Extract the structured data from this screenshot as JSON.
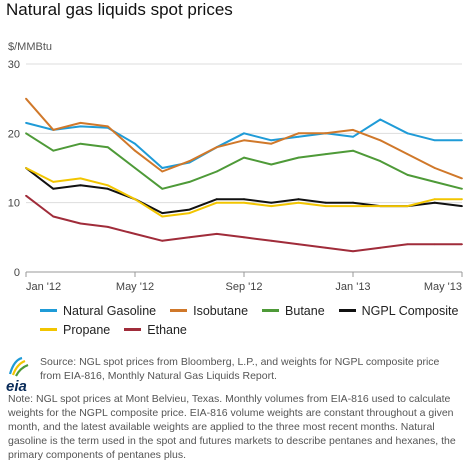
{
  "title": "Natural gas liquids spot prices",
  "unit": "$/MMBtu",
  "source": "Source: NGL spot prices from Bloomberg, L.P., and weights for NGPL composite price from EIA-816, Monthly Natural Gas Liquids Report.",
  "note": "Note: NGL spot prices at Mont Belvieu, Texas. Monthly volumes from EIA-816 used to calculate weights for the NGPL composite price. EIA-816 volume weights are constant throughout a given month, and the latest available weights are applied to the three most recent months. Natural gasoline is the term used in the spot and futures markets to describe pentanes and hexanes, the primary components of pentanes plus.",
  "logo_text": "eia",
  "chart_data": {
    "type": "line",
    "title": "Natural gas liquids spot prices",
    "ylabel": "$/MMBtu",
    "ylim": [
      0,
      30
    ],
    "yticks": [
      "0",
      "10",
      "20",
      "30"
    ],
    "xticks": [
      "Jan '12",
      "May '12",
      "Sep '12",
      "Jan '13",
      "May '13"
    ],
    "x": [
      "Jan '12",
      "Feb '12",
      "Mar '12",
      "Apr '12",
      "May '12",
      "Jun '12",
      "Jul '12",
      "Aug '12",
      "Sep '12",
      "Oct '12",
      "Nov '12",
      "Dec '12",
      "Jan '13",
      "Feb '13",
      "Mar '13",
      "Apr '13",
      "May '13"
    ],
    "grid": true,
    "legend_position": "bottom",
    "series": [
      {
        "name": "Natural Gasoline",
        "color": "#1f9bd7",
        "values": [
          21.5,
          20.5,
          21,
          20.8,
          18.5,
          15,
          15.8,
          18,
          20,
          19,
          19.5,
          20,
          19.5,
          22,
          20,
          19,
          19
        ]
      },
      {
        "name": "Isobutane",
        "color": "#d0782a",
        "values": [
          25,
          20.5,
          21.5,
          21,
          17.5,
          14.5,
          16,
          18,
          19,
          18.5,
          20,
          20,
          20.5,
          19,
          17,
          15,
          13.5
        ]
      },
      {
        "name": "Butane",
        "color": "#4e9a38",
        "values": [
          20,
          17.5,
          18.5,
          18,
          15,
          12,
          13,
          14.5,
          16.5,
          15.5,
          16.5,
          17,
          17.5,
          16,
          14,
          13,
          12
        ]
      },
      {
        "name": "NGPL Composite",
        "color": "#111111",
        "values": [
          15,
          12,
          12.5,
          12,
          10.5,
          8.5,
          9,
          10.5,
          10.5,
          10,
          10.5,
          10,
          10,
          9.5,
          9.5,
          10,
          9.5
        ]
      },
      {
        "name": "Propane",
        "color": "#f2c500",
        "values": [
          15,
          13,
          13.5,
          12.5,
          10.5,
          8,
          8.5,
          10,
          10,
          9.5,
          10,
          9.5,
          9.5,
          9.5,
          9.5,
          10.5,
          10.5
        ]
      },
      {
        "name": "Ethane",
        "color": "#a02c3a",
        "values": [
          11,
          8,
          7,
          6.5,
          5.5,
          4.5,
          5,
          5.5,
          5,
          4.5,
          4,
          3.5,
          3,
          3.5,
          4,
          4,
          4
        ]
      }
    ]
  }
}
